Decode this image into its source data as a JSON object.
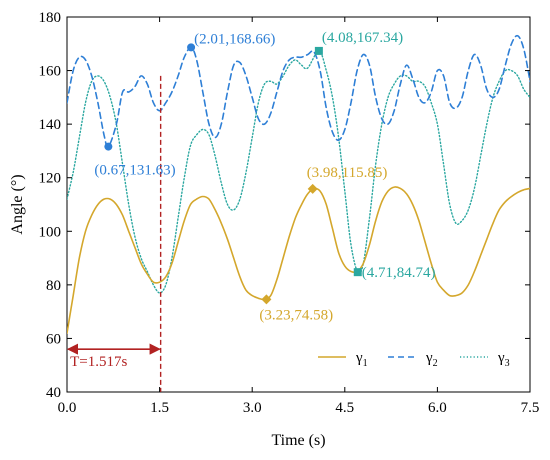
{
  "chart_data": {
    "type": "line",
    "xlabel": "Time (s)",
    "ylabel": "Angle (°)",
    "xlim": [
      0,
      7.5
    ],
    "ylim": [
      40,
      180
    ],
    "xticks": [
      "0.0",
      "1.5",
      "3.0",
      "4.5",
      "6.0",
      "7.5"
    ],
    "yticks": [
      "40",
      "60",
      "80",
      "100",
      "120",
      "140",
      "160",
      "180"
    ],
    "grid": false,
    "legend_position": "bottom-right",
    "series": [
      {
        "name": "γ1",
        "color": "#D4A72C",
        "style": "solid",
        "x": [
          0,
          0.1,
          0.2,
          0.3,
          0.4,
          0.5,
          0.6,
          0.7,
          0.8,
          0.9,
          1.0,
          1.1,
          1.2,
          1.3,
          1.4,
          1.5,
          1.6,
          1.7,
          1.8,
          1.9,
          2.0,
          2.1,
          2.2,
          2.3,
          2.4,
          2.5,
          2.6,
          2.7,
          2.8,
          2.9,
          3.0,
          3.1,
          3.2,
          3.3,
          3.4,
          3.5,
          3.6,
          3.7,
          3.8,
          3.9,
          4.0,
          4.1,
          4.2,
          4.3,
          4.4,
          4.5,
          4.6,
          4.7,
          4.8,
          4.9,
          5.0,
          5.1,
          5.2,
          5.3,
          5.4,
          5.5,
          5.6,
          5.7,
          5.8,
          5.9,
          6.0,
          6.1,
          6.2,
          6.3,
          6.4,
          6.5,
          6.6,
          6.7,
          6.8,
          6.9,
          7.0,
          7.1,
          7.2,
          7.3,
          7.4,
          7.5
        ],
        "y": [
          62,
          76,
          90,
          100,
          106,
          110,
          112,
          112,
          110,
          106,
          100,
          94,
          88,
          84,
          81,
          81,
          83,
          88,
          96,
          104,
          110,
          112,
          113,
          112,
          108,
          103,
          97,
          90,
          83,
          78,
          76,
          75,
          74.6,
          76,
          82,
          90,
          98,
          105,
          110,
          114,
          115.9,
          115,
          110,
          101,
          92,
          87,
          85,
          85,
          88,
          95,
          104,
          111,
          115,
          116.5,
          116,
          114,
          110,
          104,
          96,
          88,
          81,
          78,
          76,
          76,
          77,
          80,
          85,
          91,
          97,
          103,
          108,
          111,
          113,
          114.5,
          115.5,
          116
        ]
      },
      {
        "name": "γ2",
        "color": "#2E7FD6",
        "style": "dashed",
        "x": [
          0,
          0.1,
          0.2,
          0.3,
          0.4,
          0.5,
          0.6,
          0.67,
          0.8,
          0.9,
          1.0,
          1.1,
          1.2,
          1.3,
          1.4,
          1.5,
          1.6,
          1.7,
          1.8,
          1.9,
          2.01,
          2.1,
          2.2,
          2.3,
          2.4,
          2.5,
          2.6,
          2.7,
          2.8,
          2.9,
          3.0,
          3.1,
          3.2,
          3.3,
          3.4,
          3.5,
          3.6,
          3.7,
          3.8,
          3.9,
          4.0,
          4.1,
          4.2,
          4.3,
          4.4,
          4.5,
          4.6,
          4.7,
          4.8,
          4.9,
          5.0,
          5.1,
          5.2,
          5.3,
          5.4,
          5.5,
          5.6,
          5.7,
          5.8,
          5.9,
          6.0,
          6.1,
          6.2,
          6.3,
          6.4,
          6.5,
          6.6,
          6.7,
          6.8,
          6.9,
          7.0,
          7.1,
          7.2,
          7.3,
          7.4,
          7.5
        ],
        "y": [
          148,
          160,
          165,
          164,
          158,
          148,
          136,
          131.6,
          140,
          152,
          152,
          154,
          158,
          155,
          148,
          145,
          148,
          152,
          158,
          165,
          168.7,
          164,
          152,
          140,
          135,
          140,
          152,
          162,
          163,
          158,
          150,
          142,
          140,
          144,
          152,
          160,
          164,
          165,
          165,
          166,
          167,
          160,
          146,
          137,
          134,
          138,
          148,
          160,
          166,
          162,
          150,
          142,
          140,
          145,
          155,
          162,
          157,
          150,
          148,
          152,
          160,
          158,
          148,
          146,
          150,
          160,
          166,
          162,
          153,
          150,
          153,
          162,
          170,
          173,
          168,
          156
        ]
      },
      {
        "name": "γ3",
        "color": "#2AA7A0",
        "style": "dotted",
        "x": [
          0,
          0.1,
          0.2,
          0.3,
          0.4,
          0.5,
          0.6,
          0.7,
          0.8,
          0.9,
          1.0,
          1.1,
          1.2,
          1.3,
          1.4,
          1.5,
          1.6,
          1.7,
          1.8,
          1.9,
          2.0,
          2.1,
          2.2,
          2.3,
          2.4,
          2.5,
          2.6,
          2.7,
          2.8,
          2.9,
          3.0,
          3.1,
          3.2,
          3.3,
          3.4,
          3.5,
          3.6,
          3.7,
          3.8,
          3.9,
          4.08,
          4.2,
          4.3,
          4.4,
          4.5,
          4.6,
          4.71,
          4.8,
          4.9,
          5.0,
          5.1,
          5.2,
          5.3,
          5.4,
          5.5,
          5.6,
          5.7,
          5.8,
          5.9,
          6.0,
          6.1,
          6.2,
          6.3,
          6.4,
          6.5,
          6.6,
          6.7,
          6.8,
          6.9,
          7.0,
          7.1,
          7.2,
          7.3,
          7.4,
          7.5
        ],
        "y": [
          112,
          122,
          135,
          148,
          156,
          158,
          156,
          150,
          140,
          125,
          110,
          98,
          90,
          85,
          80,
          77,
          80,
          90,
          105,
          120,
          132,
          136,
          138,
          136,
          128,
          118,
          110,
          108,
          112,
          122,
          135,
          148,
          155,
          156,
          155,
          158,
          162,
          164,
          162,
          161,
          167.3,
          160,
          150,
          135,
          115,
          95,
          84.7,
          88,
          105,
          125,
          140,
          150,
          155,
          158,
          158,
          156,
          156,
          154,
          148,
          140,
          125,
          110,
          103,
          104,
          108,
          116,
          128,
          140,
          150,
          156,
          160,
          160,
          158,
          153,
          150
        ]
      }
    ],
    "annotations": [
      {
        "label": "(0.67,131.63)",
        "x": 0.67,
        "y": 131.63,
        "series": "γ2",
        "marker": "circle"
      },
      {
        "label": "(2.01,168.66)",
        "x": 2.01,
        "y": 168.66,
        "series": "γ2",
        "marker": "circle"
      },
      {
        "label": "(4.08,167.34)",
        "x": 4.08,
        "y": 167.34,
        "series": "γ3",
        "marker": "square"
      },
      {
        "label": "(3.98,115.85)",
        "x": 3.98,
        "y": 115.85,
        "series": "γ1",
        "marker": "diamond"
      },
      {
        "label": "(3.23,74.58)",
        "x": 3.23,
        "y": 74.58,
        "series": "γ1",
        "marker": "diamond"
      },
      {
        "label": "(4.71,84.74)",
        "x": 4.71,
        "y": 84.74,
        "series": "γ3",
        "marker": "square"
      }
    ],
    "period": {
      "label": "T=1.517s",
      "start": 0,
      "end": 1.517,
      "y": 56
    },
    "legend": [
      {
        "base": "γ",
        "sub": "1",
        "series": "γ1"
      },
      {
        "base": "γ",
        "sub": "2",
        "series": "γ2"
      },
      {
        "base": "γ",
        "sub": "3",
        "series": "γ3"
      }
    ]
  }
}
